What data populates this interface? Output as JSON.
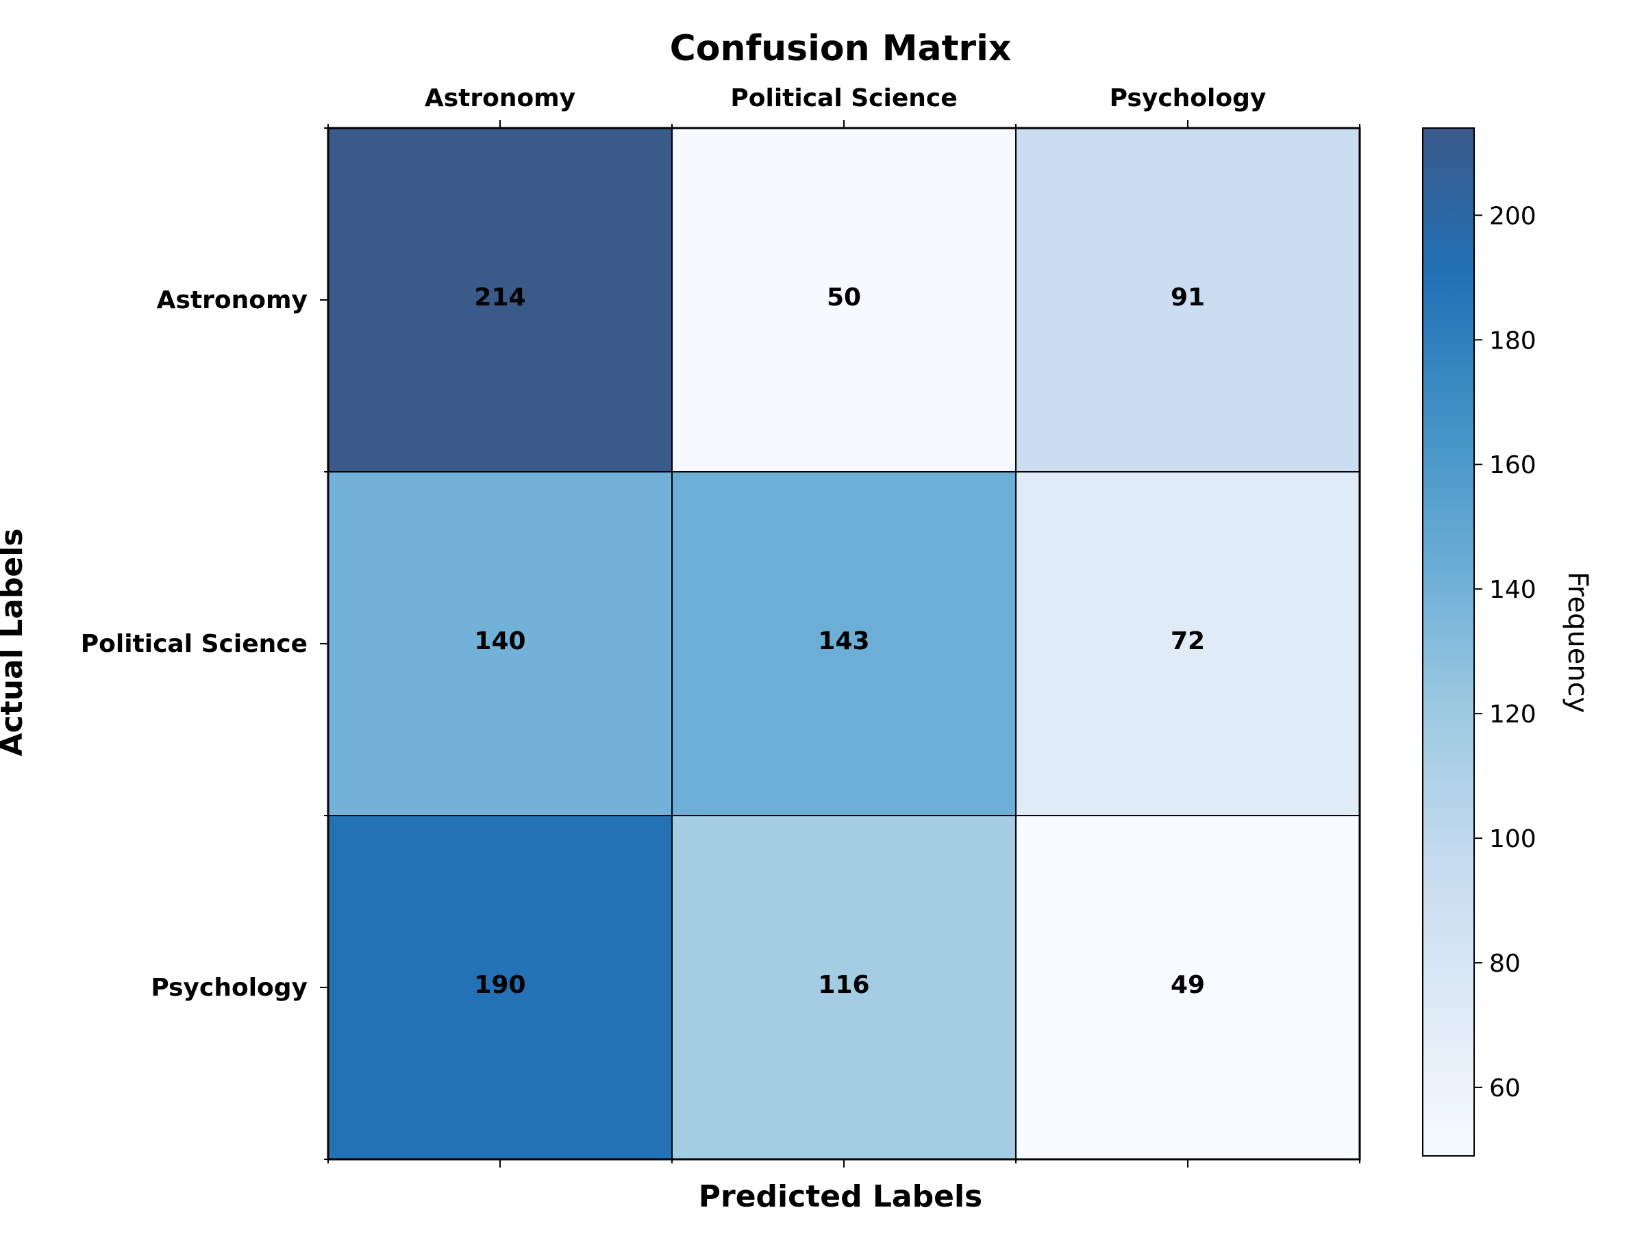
{
  "chart_data": {
    "type": "heatmap",
    "title": "Confusion Matrix",
    "xlabel": "Predicted Labels",
    "ylabel": "Actual Labels",
    "x_categories": [
      "Astronomy",
      "Political Science",
      "Psychology"
    ],
    "y_categories": [
      "Astronomy",
      "Political Science",
      "Psychology"
    ],
    "x_tick_position": "top",
    "values": [
      [
        214,
        50,
        91
      ],
      [
        140,
        143,
        72
      ],
      [
        190,
        116,
        49
      ]
    ],
    "colorbar": {
      "label": "Frequency",
      "range": [
        49,
        214
      ],
      "ticks": [
        60,
        80,
        100,
        120,
        140,
        160,
        180,
        200
      ]
    },
    "colormap": {
      "name": "Blues",
      "stops": [
        "#f7fbff",
        "#deebf7",
        "#c6dbef",
        "#9ecae1",
        "#6baed6",
        "#4292c6",
        "#2171b5",
        "#3a5a8a"
      ]
    },
    "grid": false,
    "legend": "none"
  }
}
